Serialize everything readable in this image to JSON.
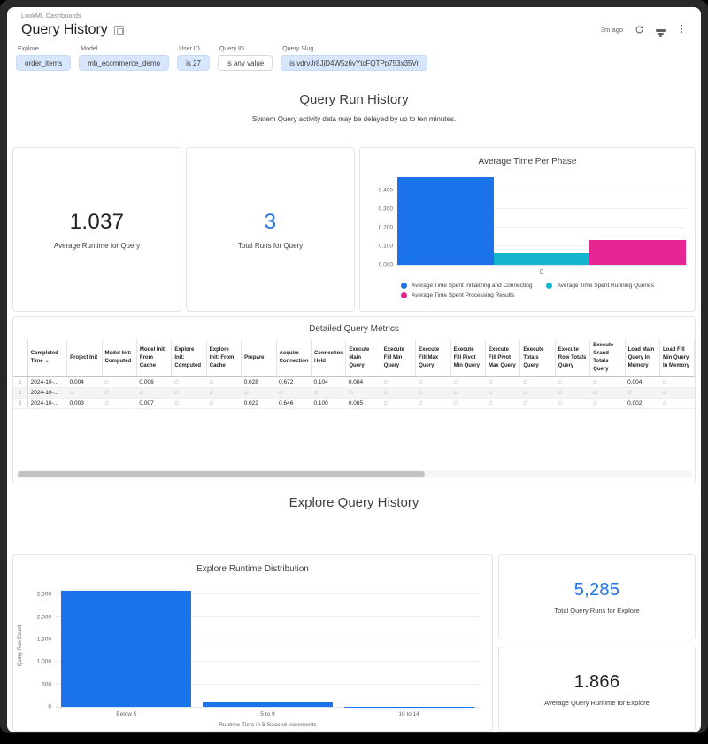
{
  "header": {
    "breadcrumb": "LookML Dashboards",
    "title": "Query History",
    "timestamp": "3m ago",
    "icons": [
      "lookml-dashboard-icon",
      "refresh-icon",
      "filter-icon",
      "kebab-menu-icon"
    ]
  },
  "filters": [
    {
      "label": "Explore",
      "value": "order_items",
      "style": "filled"
    },
    {
      "label": "Model",
      "value": "mb_ecommerce_demo",
      "style": "filled"
    },
    {
      "label": "User ID",
      "value": "is 27",
      "style": "filled"
    },
    {
      "label": "Query ID",
      "value": "is any value",
      "style": "outline"
    },
    {
      "label": "Query Slug",
      "value": "is vdrvJr8JjD4W5z6vYtcFQTPp753x35Vr",
      "style": "filled"
    }
  ],
  "sections": {
    "query_run_history": {
      "title": "Query Run History",
      "subtitle": "System Query activity data may be delayed by up to ten minutes."
    },
    "explore_query_history": {
      "title": "Explore Query History"
    }
  },
  "kpis": {
    "avg_runtime_query": {
      "value": "1.037",
      "label": "Average Runtime for Query",
      "color": "#202124"
    },
    "total_runs_query": {
      "value": "3",
      "label": "Total Runs for Query",
      "color": "#1a73e8"
    },
    "total_runs_explore": {
      "value": "5,285",
      "label": "Total Query Runs for Explore",
      "color": "#1a73e8"
    },
    "avg_runtime_explore": {
      "value": "1.866",
      "label": "Average Query Runtime for Explore",
      "color": "#202124"
    }
  },
  "chart_data": [
    {
      "id": "average-time-per-phase",
      "type": "bar",
      "title": "Average Time Per Phase",
      "categories": [
        "0"
      ],
      "series": [
        {
          "name": "Average Time Spent Initializing and Connecting",
          "values": [
            0.47
          ],
          "color": "#1a73e8"
        },
        {
          "name": "Average Time Spent Running Queries",
          "values": [
            0.06
          ],
          "color": "#12b5cb"
        },
        {
          "name": "Average Time Spent Processing Results",
          "values": [
            0.135
          ],
          "color": "#e52592"
        }
      ],
      "ylim": [
        0,
        0.5
      ],
      "yticks": [
        0,
        0.1,
        0.2,
        0.3,
        0.4
      ],
      "ytick_labels": [
        "0.000",
        "0.100",
        "0.200",
        "0.300",
        "0.400"
      ],
      "xlabel": "",
      "ylabel": "",
      "grid": true,
      "legend_position": "bottom"
    },
    {
      "id": "explore-runtime-distribution",
      "type": "bar",
      "title": "Explore Runtime Distribution",
      "categories": [
        "Below 5",
        "5 to 9",
        "10 to 14"
      ],
      "values": [
        2590,
        100,
        5
      ],
      "color": "#1a73e8",
      "ylim": [
        0,
        2700
      ],
      "yticks": [
        0,
        500,
        1000,
        1500,
        2000,
        2500
      ],
      "ytick_labels": [
        "0",
        "500",
        "1,000",
        "1,500",
        "2,000",
        "2,500"
      ],
      "xlabel": "Runtime Tiers in 5-Second Increments",
      "ylabel": "Query Run Count",
      "grid": true,
      "legend_position": "none"
    }
  ],
  "table": {
    "title": "Detailed Query Metrics",
    "sorted_by": "Completed Time",
    "sort_caret": "⌄",
    "null_symbol": "∅",
    "columns": [
      "Completed Time",
      "Project Init",
      "Model Init: Computed",
      "Model Init: From Cache",
      "Explore Init: Computed",
      "Explore Init: From Cache",
      "Prepare",
      "Acquire Connection",
      "Connection Held",
      "Execute Main Query",
      "Execute Fill Min Query",
      "Execute Fill Max Query",
      "Execute Fill Pivot Min Query",
      "Execute Fill Pivot Max Query",
      "Execute Totals Query",
      "Execute Row Totals Query",
      "Execute Grand Totals Query",
      "Load Main Query In Memory",
      "Load Fill Min Query In Memory",
      "Load Fill Max Query In Memory"
    ],
    "rows": [
      {
        "num": "1",
        "cells": [
          "2024-10-...",
          "0.004",
          null,
          "0.006",
          null,
          null,
          "0.028",
          "0.672",
          "0.104",
          "0.084",
          null,
          null,
          null,
          null,
          null,
          null,
          null,
          "0.004",
          null,
          null
        ]
      },
      {
        "num": "2",
        "cells": [
          "2024-10-...",
          null,
          null,
          null,
          null,
          null,
          null,
          null,
          null,
          null,
          null,
          null,
          null,
          null,
          null,
          null,
          null,
          null,
          null,
          null
        ]
      },
      {
        "num": "3",
        "cells": [
          "2024-10-...",
          "0.003",
          null,
          "0.007",
          null,
          null,
          "0.022",
          "0.646",
          "0.100",
          "0.085",
          null,
          null,
          null,
          null,
          null,
          null,
          null,
          "0.002",
          null,
          null
        ]
      }
    ]
  }
}
